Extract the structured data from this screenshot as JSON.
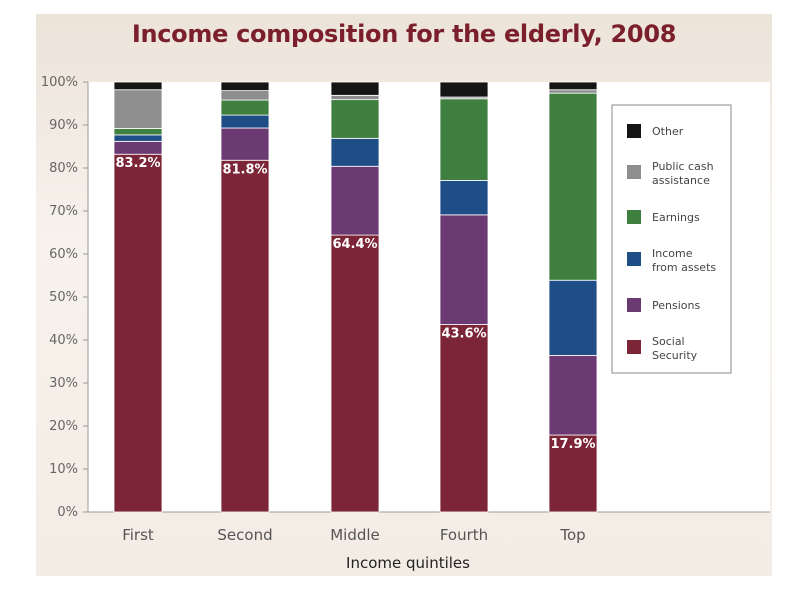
{
  "chart_data": {
    "type": "bar",
    "stacked": true,
    "title": "Income composition for the elderly, 2008",
    "xlabel": "Income quintiles",
    "ylabel": "",
    "ylim": [
      0,
      100
    ],
    "y_ticks": [
      "0%",
      "10%",
      "20%",
      "30%",
      "40%",
      "50%",
      "60%",
      "70%",
      "80%",
      "90%",
      "100%"
    ],
    "categories": [
      "First",
      "Second",
      "Middle",
      "Fourth",
      "Top"
    ],
    "series": [
      {
        "name": "Social Security",
        "color": "#7b2536",
        "values": [
          83.2,
          81.8,
          64.4,
          43.6,
          17.9
        ]
      },
      {
        "name": "Pensions",
        "color": "#6b3a72",
        "values": [
          3.0,
          7.5,
          16.0,
          25.5,
          18.5
        ]
      },
      {
        "name": "Income from assets",
        "color": "#1f4e86",
        "values": [
          1.5,
          3.0,
          6.5,
          8.0,
          17.5
        ]
      },
      {
        "name": "Earnings",
        "color": "#3f8040",
        "values": [
          1.5,
          3.5,
          9.0,
          19.0,
          43.5
        ]
      },
      {
        "name": "Public cash assistance",
        "color": "#8e8e8e",
        "values": [
          9.0,
          2.2,
          1.0,
          0.4,
          0.8
        ]
      },
      {
        "name": "Other",
        "color": "#151515",
        "values": [
          1.8,
          2.0,
          3.1,
          3.5,
          1.8
        ]
      }
    ],
    "data_labels": [
      "83.2%",
      "81.8%",
      "64.4%",
      "43.6%",
      "17.9%"
    ],
    "legend_position": "right",
    "legend_order": [
      "Other",
      "Public cash assistance",
      "Earnings",
      "Income from assets",
      "Pensions",
      "Social Security"
    ],
    "legend_lines": {
      "Other": [
        "Other"
      ],
      "Public cash assistance": [
        "Public cash",
        "assistance"
      ],
      "Earnings": [
        "Earnings"
      ],
      "Income from assets": [
        "Income",
        "from assets"
      ],
      "Pensions": [
        "Pensions"
      ],
      "Social Security": [
        "Social",
        "Security"
      ]
    },
    "grid": false
  }
}
